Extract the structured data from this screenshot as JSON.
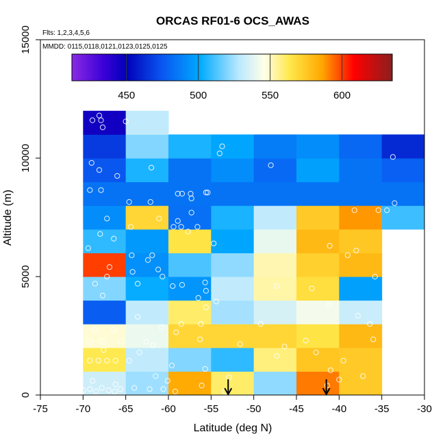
{
  "chart_data": {
    "type": "heatmap",
    "title": "ORCAS RF01-6 OCS_AWAS",
    "notes": [
      "Flts: 1,2,3,4,5,6",
      "MMDD: 0115,0118,0121,0123,0125,0125"
    ],
    "xlabel": "Latitude (deg N)",
    "ylabel": "Altitude (m)",
    "xlim": [
      -75,
      -30
    ],
    "ylim": [
      0,
      15000
    ],
    "x_ticks": [
      -75,
      -70,
      -65,
      -60,
      -55,
      -50,
      -45,
      -40,
      -35,
      -30
    ],
    "y_ticks": [
      0,
      5000,
      10000,
      15000
    ],
    "x_bin_edges": [
      -70,
      -65,
      -60,
      -55,
      -50,
      -45,
      -40,
      -35,
      -30
    ],
    "y_bin_edges": [
      0,
      1000,
      2000,
      3000,
      4000,
      5000,
      6000,
      7000,
      8000,
      9000,
      10000,
      11000,
      12000
    ],
    "cell_values": [
      [
        533,
        524,
        585,
        560,
        522,
        592,
        574,
        null
      ],
      [
        563,
        530,
        520,
        508,
        558,
        576,
        574,
        null
      ],
      [
        548,
        541,
        570,
        570,
        570,
        565,
        580,
        null
      ],
      [
        477,
        530,
        560,
        525,
        535,
        543,
        532,
        null
      ],
      [
        520,
        502,
        495,
        530,
        553,
        567,
        498,
        null
      ],
      [
        600,
        493,
        512,
        522,
        552,
        572,
        580,
        null
      ],
      [
        508,
        496,
        565,
        500,
        540,
        580,
        575,
        null
      ],
      [
        492,
        570,
        483,
        505,
        530,
        574,
        588,
        510
      ],
      [
        484,
        484,
        484,
        484,
        484,
        484,
        484,
        484
      ],
      [
        475,
        505,
        484,
        492,
        481,
        498,
        484,
        478
      ],
      [
        467,
        520,
        505,
        500,
        487,
        492,
        480,
        462
      ],
      [
        445,
        530,
        null,
        null,
        null,
        null,
        null,
        null
      ]
    ],
    "colorbar": {
      "range": [
        412,
        635
      ],
      "ticks": [
        450,
        500,
        550,
        600
      ]
    },
    "arrows_lat": [
      -53,
      -41.5
    ],
    "sample_points": [
      [
        -70,
        200
      ],
      [
        -69.2,
        250
      ],
      [
        -68.5,
        150
      ],
      [
        -67.8,
        300
      ],
      [
        -67,
        200
      ],
      [
        -66.3,
        150
      ],
      [
        -65.6,
        250
      ],
      [
        -68.9,
        600
      ],
      [
        -66.2,
        450
      ],
      [
        -69.2,
        1450
      ],
      [
        -68.2,
        1450
      ],
      [
        -67.2,
        1450
      ],
      [
        -66.2,
        1450
      ],
      [
        -67.6,
        1900
      ],
      [
        -69.2,
        2250
      ],
      [
        -67.8,
        2250
      ],
      [
        -65.5,
        2250
      ],
      [
        -66.4,
        2750
      ],
      [
        -68.6,
        2750
      ],
      [
        -64,
        300
      ],
      [
        -62.2,
        250
      ],
      [
        -61.5,
        800
      ],
      [
        -63.4,
        1800
      ],
      [
        -64.6,
        1450
      ],
      [
        -62.6,
        2250
      ],
      [
        -61.8,
        2100
      ],
      [
        -60.8,
        2850
      ],
      [
        -63.6,
        3300
      ],
      [
        -60.6,
        250
      ],
      [
        -60.1,
        600
      ],
      [
        -59.2,
        150
      ],
      [
        -56.1,
        400
      ],
      [
        -55.7,
        1100
      ],
      [
        -59.6,
        1250
      ],
      [
        -56.3,
        2350
      ],
      [
        -59.1,
        2650
      ],
      [
        -58.5,
        3000
      ],
      [
        -56.2,
        3000
      ],
      [
        -56.5,
        4100
      ],
      [
        -55.6,
        3700
      ],
      [
        -54.4,
        3950
      ],
      [
        -53.4,
        150
      ],
      [
        -52.9,
        750
      ],
      [
        -51.6,
        2150
      ],
      [
        -49.2,
        3000
      ],
      [
        -47.3,
        1650
      ],
      [
        -46.4,
        2050
      ],
      [
        -43.9,
        2300
      ],
      [
        -42.7,
        1800
      ],
      [
        -41.4,
        400
      ],
      [
        -41,
        1050
      ],
      [
        -40,
        650
      ],
      [
        -39.5,
        1450
      ],
      [
        -37.2,
        800
      ],
      [
        -36,
        2350
      ],
      [
        -36.4,
        3000
      ],
      [
        -37.8,
        3350
      ],
      [
        -41.2,
        3800
      ],
      [
        -43.2,
        4500
      ],
      [
        -47.3,
        4600
      ],
      [
        -67.7,
        4200
      ],
      [
        -68.6,
        4700
      ],
      [
        -67.2,
        5000
      ],
      [
        -66.9,
        5400
      ],
      [
        -63.6,
        4700
      ],
      [
        -61.2,
        5300
      ],
      [
        -62.4,
        5700
      ],
      [
        -64.3,
        5900
      ],
      [
        -61.9,
        5900
      ],
      [
        -59.5,
        4600
      ],
      [
        -58.4,
        4650
      ],
      [
        -55.6,
        4400
      ],
      [
        -55.7,
        4750
      ],
      [
        -60.7,
        5000
      ],
      [
        -64.2,
        5200
      ],
      [
        -66.4,
        6600
      ],
      [
        -68,
        6800
      ],
      [
        -69.4,
        6200
      ],
      [
        -67.2,
        7450
      ],
      [
        -64.4,
        7100
      ],
      [
        -61.1,
        7450
      ],
      [
        -59.4,
        7100
      ],
      [
        -58.5,
        7100
      ],
      [
        -58.9,
        7350
      ],
      [
        -57.7,
        6900
      ],
      [
        -56.6,
        7100
      ],
      [
        -57.3,
        7700
      ],
      [
        -54.7,
        6400
      ],
      [
        -41.1,
        6300
      ],
      [
        -39,
        5900
      ],
      [
        -38,
        6100
      ],
      [
        -35.8,
        5000
      ],
      [
        -38.2,
        7800
      ],
      [
        -35.4,
        7800
      ],
      [
        -34.4,
        7800
      ],
      [
        -69.2,
        8650
      ],
      [
        -67.9,
        8650
      ],
      [
        -64.6,
        8150
      ],
      [
        -62.1,
        8150
      ],
      [
        -58.9,
        8500
      ],
      [
        -58.4,
        8500
      ],
      [
        -57.4,
        8500
      ],
      [
        -57.3,
        8300
      ],
      [
        -55.6,
        8550
      ],
      [
        -55.4,
        8550
      ],
      [
        -33.5,
        8100
      ],
      [
        -69,
        9800
      ],
      [
        -68.1,
        9500
      ],
      [
        -66,
        9250
      ],
      [
        -62,
        9600
      ],
      [
        -54,
        10200
      ],
      [
        -53.7,
        10500
      ],
      [
        -48,
        9700
      ],
      [
        -33.7,
        10050
      ],
      [
        -68.1,
        11800
      ],
      [
        -67.9,
        11600
      ],
      [
        -67.7,
        11300
      ],
      [
        -68.9,
        11600
      ],
      [
        -65,
        11550
      ]
    ]
  }
}
